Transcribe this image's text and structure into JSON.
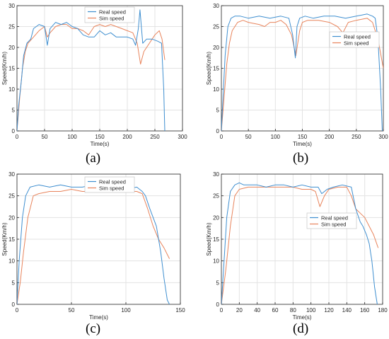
{
  "chart_data": [
    {
      "type": "line",
      "caption": "(a)",
      "xlabel": "Time(s)",
      "ylabel": "Speed(Km/h)",
      "xlim": [
        0,
        300
      ],
      "ylim": [
        0,
        30
      ],
      "xticks": [
        0,
        50,
        100,
        150,
        200,
        250,
        300
      ],
      "yticks": [
        0,
        5,
        10,
        15,
        20,
        25,
        30
      ],
      "grid": true,
      "legend_position": "top-right",
      "series": [
        {
          "name": "Real speed",
          "color": "#3f8fd0",
          "x": [
            0,
            3,
            8,
            12,
            18,
            25,
            30,
            40,
            50,
            55,
            60,
            70,
            80,
            90,
            100,
            110,
            120,
            130,
            140,
            150,
            160,
            170,
            180,
            190,
            200,
            210,
            215,
            220,
            223,
            228,
            235,
            245,
            255,
            262,
            266,
            268
          ],
          "y": [
            0,
            6,
            12,
            18,
            21,
            22,
            24.5,
            25.5,
            25,
            20.5,
            24.5,
            26,
            25.5,
            26,
            25,
            24.5,
            23,
            22.5,
            22.5,
            24,
            23,
            23.5,
            22.5,
            22.5,
            22.5,
            22,
            20.5,
            24.5,
            29,
            21,
            22,
            22,
            21.5,
            21,
            10,
            0
          ]
        },
        {
          "name": "Sim speed",
          "color": "#e8845c",
          "x": [
            0,
            5,
            10,
            15,
            20,
            30,
            40,
            50,
            55,
            60,
            70,
            80,
            90,
            100,
            110,
            120,
            130,
            140,
            150,
            160,
            170,
            180,
            190,
            200,
            210,
            218,
            224,
            230,
            240,
            250,
            258,
            263,
            268
          ],
          "y": [
            0,
            8,
            15,
            19,
            21,
            22.5,
            24,
            25,
            22.5,
            23.5,
            25,
            25.5,
            25.5,
            24.5,
            24.5,
            24,
            23,
            25,
            25.5,
            25,
            25.5,
            25,
            24.5,
            24,
            23.5,
            21,
            16,
            19,
            21,
            23,
            24,
            22,
            17
          ]
        }
      ]
    },
    {
      "type": "line",
      "caption": "(b)",
      "xlabel": "Time(s)",
      "ylabel": "Speed(Km/h)",
      "xlim": [
        0,
        300
      ],
      "ylim": [
        0,
        30
      ],
      "xticks": [
        0,
        50,
        100,
        150,
        200,
        250,
        300
      ],
      "yticks": [
        0,
        5,
        10,
        15,
        20,
        25,
        30
      ],
      "grid": true,
      "legend_position": "right",
      "series": [
        {
          "name": "Real speed",
          "color": "#3f8fd0",
          "x": [
            0,
            3,
            7,
            12,
            18,
            25,
            35,
            50,
            70,
            90,
            110,
            125,
            132,
            137,
            140,
            145,
            155,
            170,
            190,
            210,
            230,
            250,
            270,
            280,
            285,
            290,
            295,
            298
          ],
          "y": [
            0,
            8,
            18,
            25,
            27,
            27.5,
            27.5,
            27,
            27.5,
            27,
            27.5,
            27,
            23,
            17.5,
            25,
            27,
            27.5,
            27,
            27.5,
            27.5,
            27,
            27.5,
            28,
            27.5,
            27,
            22,
            10,
            0
          ]
        },
        {
          "name": "Sim speed",
          "color": "#e8845c",
          "x": [
            0,
            5,
            10,
            15,
            20,
            30,
            40,
            50,
            70,
            80,
            90,
            100,
            110,
            120,
            130,
            138,
            145,
            150,
            160,
            180,
            200,
            215,
            225,
            235,
            250,
            270,
            280,
            290,
            300
          ],
          "y": [
            0,
            8,
            16,
            21,
            24,
            26,
            26.5,
            26,
            25.5,
            25,
            26,
            26,
            26.5,
            25.5,
            23,
            18,
            24,
            26,
            26.5,
            26.5,
            26,
            25,
            23.5,
            26,
            26.5,
            27,
            26,
            22,
            15
          ]
        }
      ]
    },
    {
      "type": "line",
      "caption": "(c)",
      "xlabel": "Time(s)",
      "ylabel": "Speed(Km/h)",
      "xlim": [
        0,
        150
      ],
      "ylim": [
        0,
        30
      ],
      "xticks": [
        0,
        50,
        100,
        150
      ],
      "yticks": [
        0,
        5,
        10,
        15,
        20,
        25,
        30
      ],
      "grid": true,
      "legend_position": "top-right",
      "series": [
        {
          "name": "Real speed",
          "color": "#3f8fd0",
          "x": [
            0,
            2,
            5,
            8,
            12,
            20,
            30,
            40,
            50,
            60,
            70,
            80,
            90,
            100,
            110,
            115,
            118,
            122,
            125,
            128,
            132,
            135,
            138,
            140
          ],
          "y": [
            0,
            10,
            20,
            25,
            27,
            27.5,
            27,
            27.5,
            27,
            27,
            27.5,
            27,
            26.5,
            26.5,
            27,
            26,
            25,
            22,
            20,
            18,
            12,
            6,
            1,
            0
          ]
        },
        {
          "name": "Sim speed",
          "color": "#e8845c",
          "x": [
            0,
            3,
            6,
            10,
            15,
            20,
            30,
            40,
            50,
            60,
            70,
            80,
            90,
            100,
            110,
            115,
            120,
            125,
            130,
            135,
            140
          ],
          "y": [
            0,
            5,
            12,
            20,
            25,
            25.5,
            26,
            26,
            26.5,
            26,
            26,
            26,
            26.5,
            26,
            26,
            25.5,
            22,
            18,
            15,
            13,
            10.5
          ]
        }
      ]
    },
    {
      "type": "line",
      "caption": "(d)",
      "xlabel": "Time(s)",
      "ylabel": "Speed(Km/h)",
      "xlim": [
        0,
        180
      ],
      "ylim": [
        0,
        30
      ],
      "xticks": [
        0,
        20,
        40,
        60,
        80,
        100,
        120,
        140,
        160,
        180
      ],
      "yticks": [
        0,
        5,
        10,
        15,
        20,
        25,
        30
      ],
      "grid": true,
      "legend_position": "right",
      "series": [
        {
          "name": "Real speed",
          "color": "#3f8fd0",
          "x": [
            0,
            3,
            6,
            10,
            15,
            20,
            25,
            30,
            40,
            50,
            60,
            70,
            80,
            90,
            100,
            108,
            112,
            118,
            125,
            135,
            145,
            150,
            155,
            158,
            162,
            165,
            168,
            171,
            174
          ],
          "y": [
            0,
            10,
            20,
            26,
            27.5,
            28,
            27.5,
            27.5,
            27.5,
            27,
            27.5,
            27.5,
            27,
            27.5,
            27,
            27,
            25.5,
            26.5,
            27,
            27.5,
            27,
            22,
            19,
            18,
            16,
            14,
            10,
            4,
            0
          ]
        },
        {
          "name": "Sim speed",
          "color": "#e8845c",
          "x": [
            0,
            5,
            10,
            15,
            20,
            30,
            40,
            50,
            60,
            70,
            80,
            90,
            100,
            105,
            110,
            115,
            120,
            130,
            140,
            145,
            150,
            155,
            160,
            165,
            170,
            175
          ],
          "y": [
            0,
            8,
            18,
            25,
            26.5,
            27,
            27,
            27,
            27,
            27,
            27,
            26.5,
            26.5,
            26,
            22.5,
            25,
            26.5,
            27,
            27,
            25,
            22,
            21,
            20,
            18,
            16,
            13
          ]
        }
      ]
    }
  ]
}
